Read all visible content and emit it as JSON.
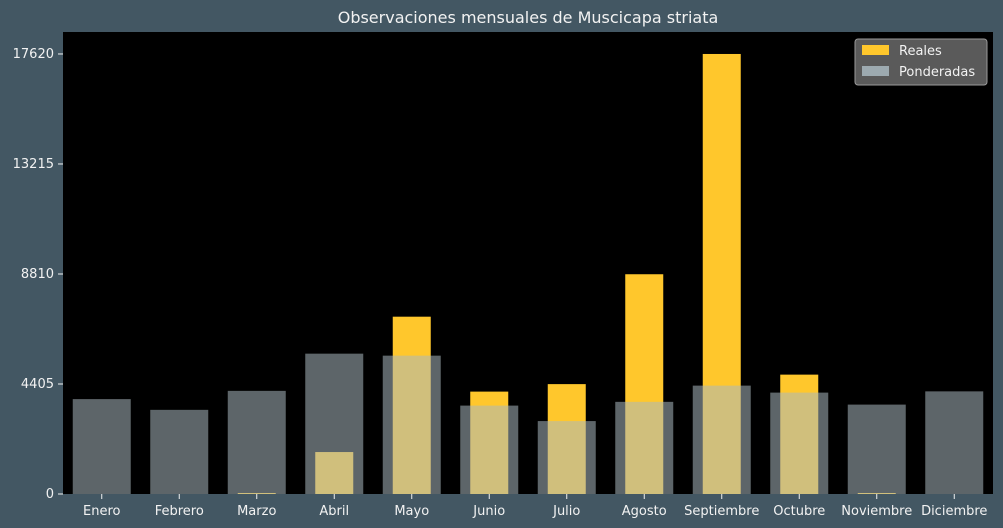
{
  "chart_data": {
    "type": "bar",
    "title": "Observaciones mensuales de Muscicapa striata",
    "xlabel": "",
    "ylabel": "",
    "categories": [
      "Enero",
      "Febrero",
      "Marzo",
      "Abril",
      "Mayo",
      "Junio",
      "Julio",
      "Agosto",
      "Septiembre",
      "Octubre",
      "Noviembre",
      "Diciembre"
    ],
    "yticks": [
      0,
      4405,
      8810,
      13215,
      17620
    ],
    "ylim": [
      0,
      18500
    ],
    "grid": false,
    "legend_position": "top-right",
    "series": [
      {
        "name": "Reales",
        "color": "#FFC72C",
        "values": [
          0,
          0,
          40,
          1680,
          7100,
          4100,
          4400,
          8800,
          17620,
          4780,
          40,
          0
        ]
      },
      {
        "name": "Ponderadas",
        "color": "#A9B8BF",
        "values": [
          3800,
          3370,
          4130,
          5620,
          5540,
          3540,
          2920,
          3690,
          4340,
          4060,
          3580,
          4110
        ]
      }
    ]
  },
  "colors": {
    "page_background": "#435763",
    "plot_background": "#000000",
    "text": "#F2F2F2",
    "legend_background": "#5A5A5A"
  }
}
